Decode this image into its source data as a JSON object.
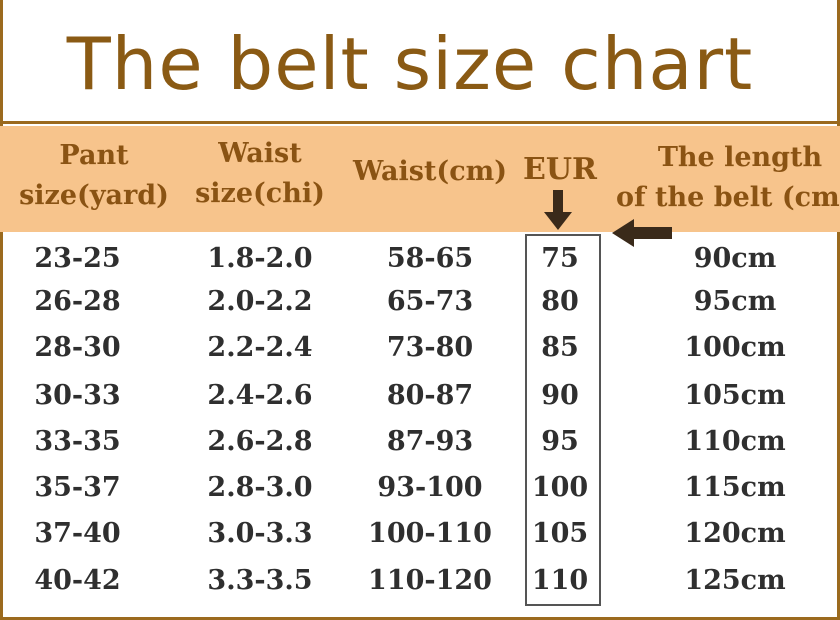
{
  "title": "The belt size chart",
  "colors": {
    "title": "#8a5a14",
    "header_bg": "#f7c48c",
    "header_text": "#8a5313",
    "cell_text": "#2f2f2f",
    "border": "#9b6a1e"
  },
  "headers": {
    "pant": [
      "Pant",
      "size(yard)"
    ],
    "waist_chi": [
      "Waist",
      "size(chi)"
    ],
    "waist_cm": "Waist(cm)",
    "eur": "EUR",
    "length": [
      "The length",
      "of the belt (cm)"
    ]
  },
  "rows": [
    {
      "pant": "23-25",
      "chi": "1.8-2.0",
      "cm": "58-65",
      "eur": "75",
      "length": "90cm"
    },
    {
      "pant": "26-28",
      "chi": "2.0-2.2",
      "cm": "65-73",
      "eur": "80",
      "length": "95cm"
    },
    {
      "pant": "28-30",
      "chi": "2.2-2.4",
      "cm": "73-80",
      "eur": "85",
      "length": "100cm"
    },
    {
      "pant": "30-33",
      "chi": "2.4-2.6",
      "cm": "80-87",
      "eur": "90",
      "length": "105cm"
    },
    {
      "pant": "33-35",
      "chi": "2.6-2.8",
      "cm": "87-93",
      "eur": "95",
      "length": "110cm"
    },
    {
      "pant": "35-37",
      "chi": "2.8-3.0",
      "cm": "93-100",
      "eur": "100",
      "length": "115cm"
    },
    {
      "pant": "37-40",
      "chi": "3.0-3.3",
      "cm": "100-110",
      "eur": "105",
      "length": "120cm"
    },
    {
      "pant": "40-42",
      "chi": "3.3-3.5",
      "cm": "110-120",
      "eur": "110",
      "length": "125cm"
    }
  ],
  "icons": {
    "down": "arrow-down-icon",
    "left": "arrow-left-icon"
  }
}
